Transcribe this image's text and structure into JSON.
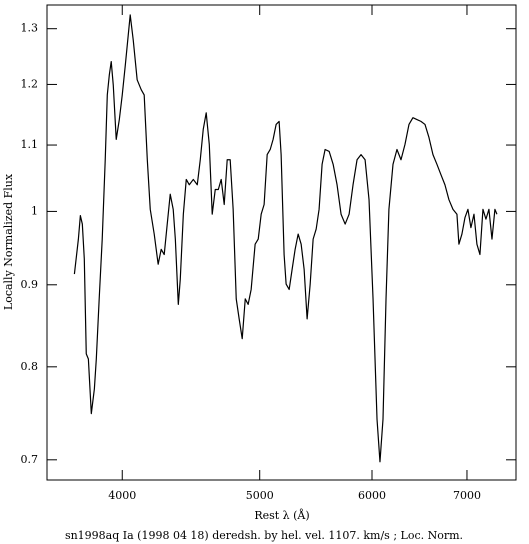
{
  "chart_data": {
    "type": "line",
    "xlabel": "Rest λ (Å)",
    "ylabel": "Locally Normalized Flux",
    "caption": "sn1998aq Ia (1998 04 18) deredsh. by hel. vel.  1107. km/s ;  Loc. Norm.",
    "xscale": "log",
    "yscale": "log",
    "color": "#000000",
    "xlim": [
      3540,
      7580
    ],
    "ylim": [
      0.68,
      1.345
    ],
    "xticks": [
      4000,
      5000,
      6000,
      7000
    ],
    "yticks": [
      0.7,
      0.8,
      0.9,
      1,
      1.1,
      1.2,
      1.3
    ],
    "x": [
      3701,
      3725,
      3737,
      3749,
      3761,
      3773,
      3786,
      3804,
      3823,
      3835,
      3853,
      3872,
      3891,
      3904,
      3917,
      3929,
      3942,
      3961,
      3981,
      4000,
      4020,
      4039,
      4052,
      4072,
      4098,
      4125,
      4145,
      4166,
      4186,
      4213,
      4240,
      4261,
      4282,
      4303,
      4324,
      4345,
      4360,
      4381,
      4395,
      4417,
      4438,
      4460,
      4489,
      4518,
      4540,
      4562,
      4584,
      4607,
      4629,
      4652,
      4675,
      4697,
      4720,
      4743,
      4766,
      4789,
      4813,
      4836,
      4860,
      4884,
      4907,
      4931,
      4963,
      4988,
      5012,
      5036,
      5061,
      5086,
      5110,
      5135,
      5160,
      5177,
      5202,
      5219,
      5245,
      5270,
      5296,
      5322,
      5348,
      5374,
      5400,
      5427,
      5453,
      5480,
      5506,
      5533,
      5560,
      5597,
      5633,
      5669,
      5706,
      5744,
      5781,
      5818,
      5856,
      5894,
      5933,
      5971,
      6010,
      6049,
      6078,
      6108,
      6138,
      6167,
      6208,
      6248,
      6289,
      6330,
      6371,
      6412,
      6454,
      6496,
      6539,
      6581,
      6624,
      6667,
      6711,
      6754,
      6798,
      6843,
      6887,
      6909,
      6943,
      6977,
      7011,
      7045,
      7080,
      7114,
      7149,
      7184,
      7219,
      7254,
      7290,
      7325,
      7349
    ],
    "values": [
      0.914,
      0.961,
      0.994,
      0.982,
      0.934,
      0.815,
      0.809,
      0.748,
      0.775,
      0.809,
      0.882,
      0.961,
      1.077,
      1.182,
      1.217,
      1.24,
      1.199,
      1.109,
      1.141,
      1.182,
      1.234,
      1.288,
      1.326,
      1.279,
      1.208,
      1.191,
      1.182,
      1.077,
      1.003,
      0.968,
      0.927,
      0.947,
      0.94,
      0.982,
      1.025,
      1.003,
      0.961,
      0.875,
      0.907,
      0.996,
      1.047,
      1.039,
      1.047,
      1.039,
      1.077,
      1.125,
      1.152,
      1.101,
      0.996,
      1.032,
      1.032,
      1.047,
      1.01,
      1.077,
      1.077,
      1.003,
      0.882,
      0.857,
      0.833,
      0.882,
      0.875,
      0.894,
      0.954,
      0.961,
      0.996,
      1.01,
      1.085,
      1.093,
      1.109,
      1.133,
      1.138,
      1.085,
      0.94,
      0.901,
      0.894,
      0.92,
      0.947,
      0.968,
      0.954,
      0.92,
      0.857,
      0.901,
      0.961,
      0.975,
      1.003,
      1.07,
      1.093,
      1.09,
      1.07,
      1.039,
      0.996,
      0.982,
      0.996,
      1.039,
      1.077,
      1.085,
      1.077,
      1.017,
      0.882,
      0.742,
      0.698,
      0.742,
      0.882,
      1.003,
      1.07,
      1.093,
      1.077,
      1.101,
      1.133,
      1.144,
      1.141,
      1.138,
      1.133,
      1.112,
      1.085,
      1.07,
      1.054,
      1.039,
      1.017,
      1.003,
      0.996,
      0.954,
      0.968,
      0.991,
      1.003,
      0.977,
      0.996,
      0.954,
      0.94,
      1.003,
      0.989,
      1.003,
      0.961,
      1.003,
      0.996
    ]
  }
}
